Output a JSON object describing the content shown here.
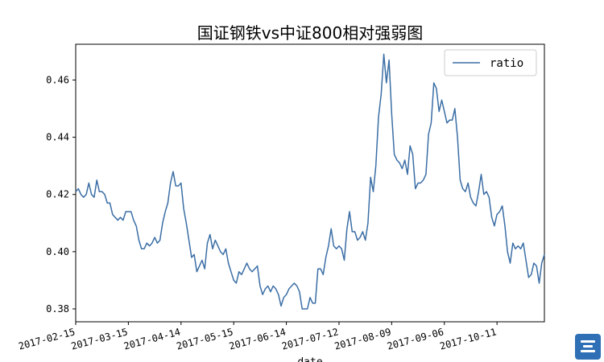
{
  "chart_data": {
    "type": "line",
    "title": "国证钢铁vs中证800相对强弱图",
    "xlabel": "date",
    "ylabel": "",
    "ylim": [
      0.3755,
      0.4725
    ],
    "yticks": [
      0.38,
      0.4,
      0.42,
      0.44,
      0.46
    ],
    "ytick_labels": [
      "0.38",
      "0.40",
      "0.42",
      "0.44",
      "0.46"
    ],
    "xtick_labels": [
      "2017-02-15",
      "2017-03-15",
      "2017-04-14",
      "2017-05-15",
      "2017-06-14",
      "2017-07-12",
      "2017-08-09",
      "2017-09-06",
      "2017-10-11"
    ],
    "xtick_index": [
      0,
      20,
      40,
      60,
      80,
      100,
      120,
      140,
      160
    ],
    "legend": {
      "position": "top-right",
      "entries": [
        "ratio"
      ]
    },
    "color": "#3b6ea5",
    "series": [
      {
        "name": "ratio",
        "values": [
          0.421,
          0.422,
          0.42,
          0.419,
          0.42,
          0.424,
          0.42,
          0.419,
          0.425,
          0.421,
          0.421,
          0.42,
          0.417,
          0.417,
          0.413,
          0.412,
          0.411,
          0.412,
          0.411,
          0.414,
          0.414,
          0.414,
          0.411,
          0.409,
          0.404,
          0.401,
          0.401,
          0.403,
          0.402,
          0.403,
          0.405,
          0.403,
          0.404,
          0.41,
          0.414,
          0.417,
          0.424,
          0.428,
          0.423,
          0.423,
          0.424,
          0.415,
          0.41,
          0.404,
          0.398,
          0.399,
          0.393,
          0.395,
          0.397,
          0.394,
          0.403,
          0.406,
          0.401,
          0.404,
          0.402,
          0.4,
          0.399,
          0.401,
          0.396,
          0.393,
          0.39,
          0.389,
          0.393,
          0.392,
          0.394,
          0.396,
          0.394,
          0.393,
          0.394,
          0.395,
          0.388,
          0.385,
          0.387,
          0.388,
          0.386,
          0.388,
          0.387,
          0.385,
          0.381,
          0.384,
          0.385,
          0.387,
          0.388,
          0.389,
          0.388,
          0.386,
          0.38,
          0.38,
          0.38,
          0.384,
          0.382,
          0.382,
          0.394,
          0.394,
          0.392,
          0.398,
          0.402,
          0.408,
          0.402,
          0.401,
          0.402,
          0.401,
          0.397,
          0.408,
          0.414,
          0.407,
          0.407,
          0.404,
          0.405,
          0.407,
          0.404,
          0.41,
          0.426,
          0.421,
          0.43,
          0.447,
          0.455,
          0.469,
          0.459,
          0.467,
          0.448,
          0.434,
          0.432,
          0.431,
          0.429,
          0.432,
          0.427,
          0.437,
          0.434,
          0.422,
          0.424,
          0.424,
          0.425,
          0.427,
          0.441,
          0.445,
          0.459,
          0.457,
          0.449,
          0.453,
          0.449,
          0.445,
          0.446,
          0.446,
          0.45,
          0.44,
          0.425,
          0.422,
          0.421,
          0.424,
          0.419,
          0.417,
          0.416,
          0.421,
          0.427,
          0.42,
          0.421,
          0.419,
          0.412,
          0.409,
          0.413,
          0.414,
          0.416,
          0.409,
          0.4,
          0.396,
          0.403,
          0.401,
          0.402,
          0.401,
          0.403,
          0.397,
          0.391,
          0.392,
          0.396,
          0.395,
          0.389,
          0.396,
          0.399
        ]
      }
    ]
  }
}
